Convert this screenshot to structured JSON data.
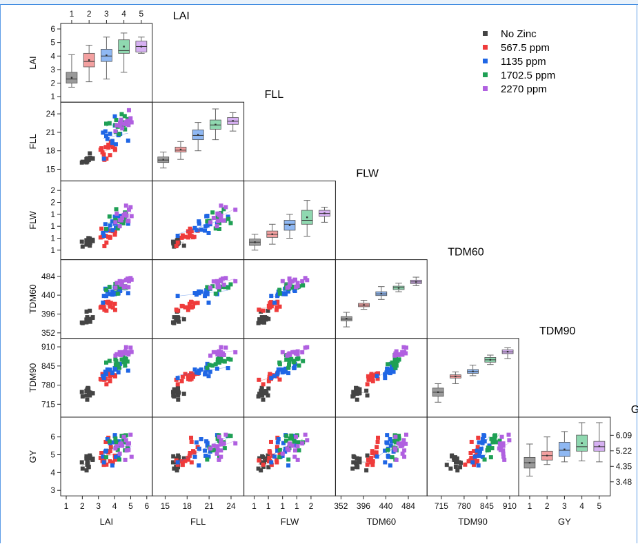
{
  "variables": [
    "LAI",
    "FLL",
    "FLW",
    "TDM60",
    "TDM90",
    "GY"
  ],
  "legend": {
    "items": [
      {
        "label": "No Zinc",
        "color": "#4a4a4a"
      },
      {
        "label": "567.5 ppm",
        "color": "#ef3b3b"
      },
      {
        "label": "1135 ppm",
        "color": "#1f66e5"
      },
      {
        "label": "1702.5 ppm",
        "color": "#1fa055"
      },
      {
        "label": "2270 ppm",
        "color": "#b060e0"
      }
    ]
  },
  "colors": {
    "fills": [
      "#9a9a9a",
      "#f3a0a0",
      "#8fb8f3",
      "#8fd8b0",
      "#d6b0f2"
    ],
    "points": [
      "#444444",
      "#ef3b3b",
      "#1f66e5",
      "#1fa055",
      "#b060e0"
    ]
  },
  "chart_data": {
    "type": "scatter-matrix",
    "variables": [
      "LAI",
      "FLL",
      "FLW",
      "TDM60",
      "TDM90",
      "GY"
    ],
    "groups": [
      "No Zinc",
      "567.5 ppm",
      "1135 ppm",
      "1702.5 ppm",
      "2270 ppm"
    ],
    "top_axis_ticks": [
      "1",
      "2",
      "3",
      "4",
      "5"
    ],
    "diagonal_box_category_ticks": [
      "1",
      "2",
      "3",
      "4",
      "5"
    ],
    "axes": {
      "LAI": {
        "ticks": [
          "1",
          "2",
          "3",
          "4",
          "5",
          "6"
        ],
        "range": [
          1,
          6
        ]
      },
      "FLL": {
        "ticks": [
          "15",
          "18",
          "21",
          "24"
        ],
        "range": [
          14,
          25
        ]
      },
      "FLW": {
        "ticks": [
          "1",
          "1",
          "1",
          "1",
          "2",
          "2"
        ],
        "range": [
          0.6,
          2.3
        ],
        "tick_values": [
          0.7,
          1.0,
          1.3,
          1.6,
          1.9,
          2.2
        ],
        "xticks": [
          "1",
          "1",
          "1",
          "1",
          "2"
        ]
      },
      "TDM60": {
        "ticks": [
          "352",
          "396",
          "440",
          "484"
        ],
        "range": [
          352,
          510
        ]
      },
      "TDM90": {
        "ticks": [
          "715",
          "780",
          "845",
          "910"
        ],
        "range": [
          690,
          920
        ]
      },
      "GY": {
        "ticks": [
          "3",
          "4",
          "5",
          "6"
        ],
        "range": [
          3,
          6.8
        ],
        "right_ticks": [
          "3.48",
          "4.35",
          "5.22",
          "6.09"
        ]
      }
    },
    "group_means": {
      "LAI": [
        2.3,
        3.6,
        4.0,
        4.5,
        4.7
      ],
      "FLL": [
        16.5,
        18.1,
        20.5,
        22.2,
        22.8
      ],
      "FLW": [
        0.9,
        1.1,
        1.35,
        1.5,
        1.62
      ],
      "TDM60": [
        385,
        417,
        443,
        457,
        471
      ],
      "TDM90": [
        756,
        810,
        826,
        866,
        893
      ],
      "GY": [
        4.5,
        4.95,
        5.3,
        5.65,
        5.55
      ]
    },
    "group_spread": {
      "LAI": [
        0.35,
        0.5,
        0.6,
        0.6,
        0.5
      ],
      "FLL": [
        0.8,
        0.9,
        1.5,
        1.6,
        1.2
      ],
      "FLW": [
        0.12,
        0.15,
        0.2,
        0.22,
        0.18
      ],
      "TDM60": [
        14,
        10,
        12,
        9,
        14
      ],
      "TDM90": [
        18,
        14,
        14,
        14,
        12
      ],
      "GY": [
        0.5,
        0.55,
        0.55,
        0.6,
        0.6
      ]
    },
    "box_stats": {
      "LAI": [
        [
          1.7,
          2.0,
          2.3,
          2.8,
          4.1
        ],
        [
          2.1,
          3.2,
          3.6,
          4.2,
          4.8
        ],
        [
          2.3,
          3.6,
          4.0,
          4.5,
          5.4
        ],
        [
          2.8,
          4.2,
          4.4,
          5.2,
          5.7
        ],
        [
          4.2,
          4.3,
          4.7,
          5.1,
          5.4
        ]
      ],
      "FLL": [
        [
          15.2,
          16.1,
          16.5,
          17.0,
          17.8
        ],
        [
          16.6,
          17.8,
          18.1,
          18.6,
          19.5
        ],
        [
          18.0,
          19.8,
          20.5,
          21.4,
          22.6
        ],
        [
          19.8,
          21.5,
          22.2,
          23.0,
          24.8
        ],
        [
          21.2,
          22.3,
          22.8,
          23.4,
          24.2
        ]
      ],
      "FLW": [
        [
          0.7,
          0.82,
          0.9,
          0.98,
          1.1
        ],
        [
          0.85,
          1.02,
          1.1,
          1.18,
          1.35
        ],
        [
          1.0,
          1.2,
          1.35,
          1.45,
          1.6
        ],
        [
          1.05,
          1.35,
          1.45,
          1.7,
          1.95
        ],
        [
          1.4,
          1.55,
          1.62,
          1.7,
          1.78
        ]
      ],
      "TDM60": [
        [
          366,
          380,
          384,
          390,
          400
        ],
        [
          407,
          413,
          417,
          421,
          428
        ],
        [
          430,
          439,
          443,
          448,
          460
        ],
        [
          448,
          453,
          457,
          461,
          468
        ],
        [
          462,
          467,
          471,
          475,
          482
        ]
      ],
      "TDM90": [
        [
          722,
          742,
          756,
          770,
          785
        ],
        [
          785,
          804,
          810,
          815,
          825
        ],
        [
          812,
          820,
          826,
          833,
          848
        ],
        [
          850,
          858,
          866,
          874,
          882
        ],
        [
          870,
          887,
          893,
          900,
          907
        ]
      ],
      "GY": [
        [
          3.8,
          4.25,
          4.55,
          4.85,
          5.6
        ],
        [
          4.45,
          4.7,
          4.95,
          5.2,
          6.0
        ],
        [
          4.6,
          4.9,
          5.25,
          5.7,
          6.3
        ],
        [
          4.65,
          5.2,
          5.45,
          6.1,
          6.8
        ],
        [
          4.6,
          5.2,
          5.45,
          5.75,
          6.8
        ]
      ]
    },
    "points_per_group": 15,
    "legend_position": "top-right",
    "grid": false
  }
}
